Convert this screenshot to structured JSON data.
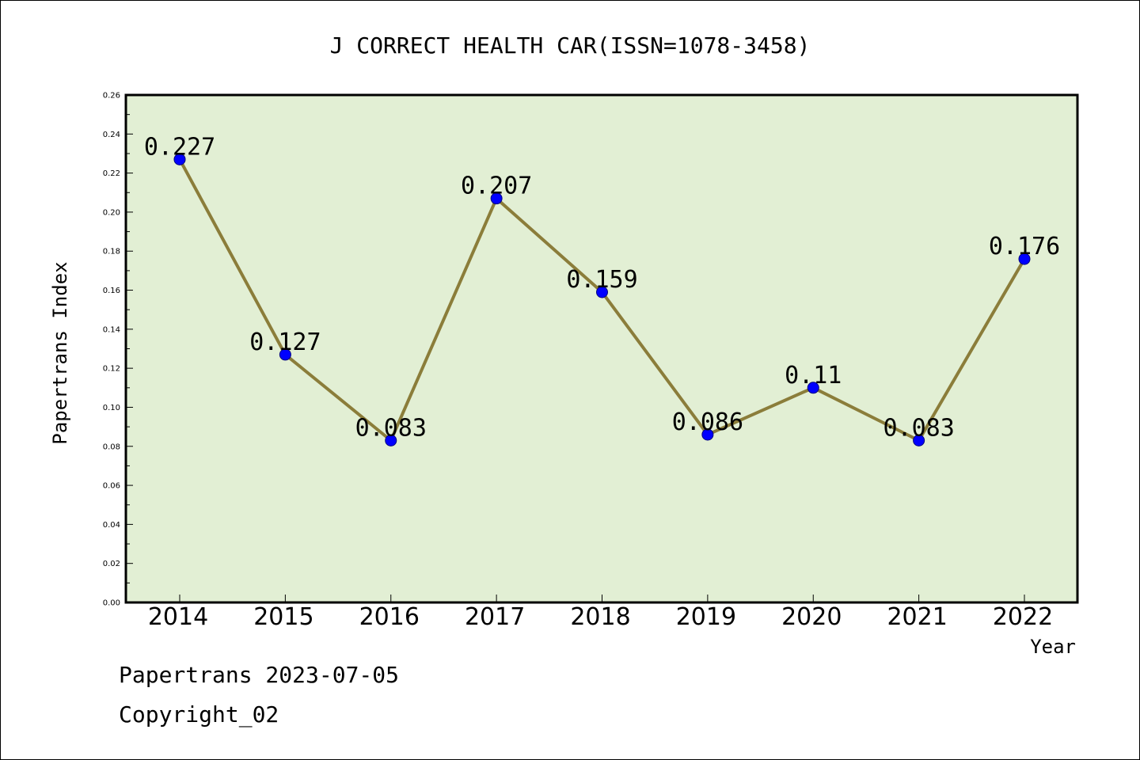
{
  "chart_data": {
    "type": "line",
    "title": "J CORRECT HEALTH CAR(ISSN=1078-3458)",
    "xlabel": "Year",
    "ylabel": "Papertrans Index",
    "categories": [
      "2014",
      "2015",
      "2016",
      "2017",
      "2018",
      "2019",
      "2020",
      "2021",
      "2022"
    ],
    "values": [
      0.227,
      0.127,
      0.083,
      0.207,
      0.159,
      0.086,
      0.11,
      0.083,
      0.176
    ],
    "data_labels": [
      "0.227",
      "0.127",
      "0.083",
      "0.207",
      "0.159",
      "0.086",
      "0.11",
      "0.083",
      "0.176"
    ],
    "ylim": [
      0,
      0.26
    ],
    "yticks": [
      "0.00",
      "0.02",
      "0.04",
      "0.06",
      "0.08",
      "0.10",
      "0.12",
      "0.14",
      "0.16",
      "0.18",
      "0.20",
      "0.22",
      "0.24",
      "0.26"
    ],
    "grid": false,
    "colors": {
      "plot_background": "#e2efd4",
      "line": "#8b7d3a",
      "marker": "#0000ff"
    }
  },
  "footer": {
    "source": "Papertrans 2023-07-05",
    "copyright": "Copyright_02"
  }
}
